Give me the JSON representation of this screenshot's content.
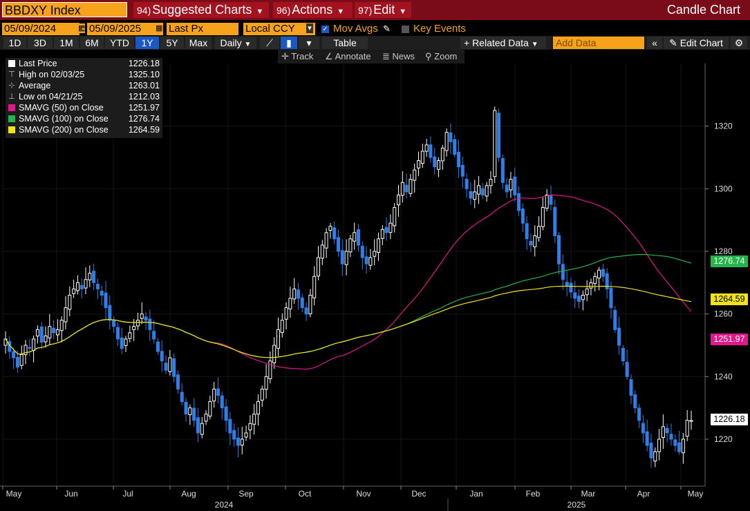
{
  "header": {
    "ticker": "BBDXY Index",
    "menus": [
      {
        "num": "94)",
        "label": "Suggested Charts"
      },
      {
        "num": "96)",
        "label": "Actions"
      },
      {
        "num": "97)",
        "label": "Edit"
      }
    ],
    "title": "Candle Chart"
  },
  "options": {
    "start_date": "05/09/2024",
    "date_sep": "-",
    "end_date": "05/09/2025",
    "field": "Last Px",
    "currency": "Local CCY",
    "mov_avgs": "Mov Avgs",
    "key_events": "Key Events"
  },
  "toolbar": {
    "periods": [
      "1D",
      "3D",
      "1M",
      "6M",
      "YTD",
      "1Y",
      "5Y",
      "Max"
    ],
    "selected": "1Y",
    "frequency": "Daily",
    "table": "Table",
    "related": "+ Related Data",
    "add_data_placeholder": "Add Data",
    "edit_chart": "Edit Chart"
  },
  "subtools": {
    "track": "Track",
    "annotate": "Annotate",
    "news": "News",
    "zoom": "Zoom"
  },
  "legend": [
    {
      "label": "Last Price",
      "value": "1226.18",
      "color": "#ffffff"
    },
    {
      "label": "High on 02/03/25",
      "value": "1325.10",
      "icon": "high"
    },
    {
      "label": "Average",
      "value": "1263.01",
      "icon": "avg"
    },
    {
      "label": "Low on 04/21/25",
      "value": "1212.03",
      "icon": "low"
    },
    {
      "label": "SMAVG (50)  on Close",
      "value": "1251.97",
      "color": "#e0188c"
    },
    {
      "label": "SMAVG (100)  on Close",
      "value": "1276.74",
      "color": "#26b54a"
    },
    {
      "label": "SMAVG (200)  on Close",
      "value": "1264.59",
      "color": "#f2e21a"
    }
  ],
  "tags": [
    {
      "value": "1276.74",
      "color": "#26b54a",
      "text": "#fff",
      "y": 1276.74
    },
    {
      "value": "1264.59",
      "color": "#f2e21a",
      "text": "#000",
      "y": 1264.59
    },
    {
      "value": "1251.97",
      "color": "#e0188c",
      "text": "#fff",
      "y": 1251.97
    },
    {
      "value": "1226.18",
      "color": "#ffffff",
      "text": "#000",
      "y": 1226.18
    }
  ],
  "chart_data": {
    "type": "candlestick",
    "title": "BBDXY Index",
    "ylim": [
      1205,
      1340
    ],
    "yticks": [
      1220,
      1240,
      1260,
      1280,
      1300,
      1320
    ],
    "months": [
      "May",
      "Jun",
      "Jul",
      "Aug",
      "Sep",
      "Oct",
      "Nov",
      "Dec",
      "Jan",
      "Feb",
      "Mar",
      "Apr",
      "May"
    ],
    "years": [
      "2024",
      "2025"
    ],
    "close": [
      1252,
      1248,
      1246,
      1243,
      1247,
      1250,
      1249,
      1252,
      1255,
      1251,
      1253,
      1256,
      1254,
      1255,
      1258,
      1262,
      1266,
      1268,
      1270,
      1268,
      1271,
      1273,
      1270,
      1268,
      1266,
      1262,
      1258,
      1256,
      1252,
      1249,
      1252,
      1254,
      1256,
      1258,
      1260,
      1258,
      1255,
      1252,
      1248,
      1245,
      1242,
      1246,
      1240,
      1236,
      1232,
      1228,
      1230,
      1226,
      1222,
      1225,
      1228,
      1232,
      1236,
      1234,
      1230,
      1226,
      1222,
      1220,
      1218,
      1220,
      1222,
      1225,
      1228,
      1232,
      1236,
      1240,
      1245,
      1250,
      1255,
      1258,
      1262,
      1265,
      1268,
      1265,
      1262,
      1260,
      1266,
      1272,
      1278,
      1282,
      1286,
      1288,
      1284,
      1280,
      1276,
      1280,
      1284,
      1286,
      1282,
      1278,
      1276,
      1278,
      1280,
      1284,
      1287,
      1286,
      1289,
      1294,
      1298,
      1302,
      1299,
      1303,
      1306,
      1309,
      1312,
      1314,
      1310,
      1307,
      1309,
      1313,
      1318,
      1315,
      1311,
      1307,
      1304,
      1300,
      1297,
      1299,
      1301,
      1298,
      1301,
      1303,
      1325,
      1310,
      1302,
      1299,
      1303,
      1298,
      1293,
      1289,
      1284,
      1282,
      1285,
      1288,
      1294,
      1298,
      1295,
      1285,
      1276,
      1271,
      1269,
      1267,
      1265,
      1264,
      1266,
      1268,
      1270,
      1272,
      1274,
      1272,
      1268,
      1262,
      1255,
      1250,
      1245,
      1240,
      1234,
      1230,
      1226,
      1222,
      1218,
      1214,
      1216,
      1220,
      1224,
      1222,
      1220,
      1218,
      1216,
      1220,
      1226,
      1226
    ]
  }
}
